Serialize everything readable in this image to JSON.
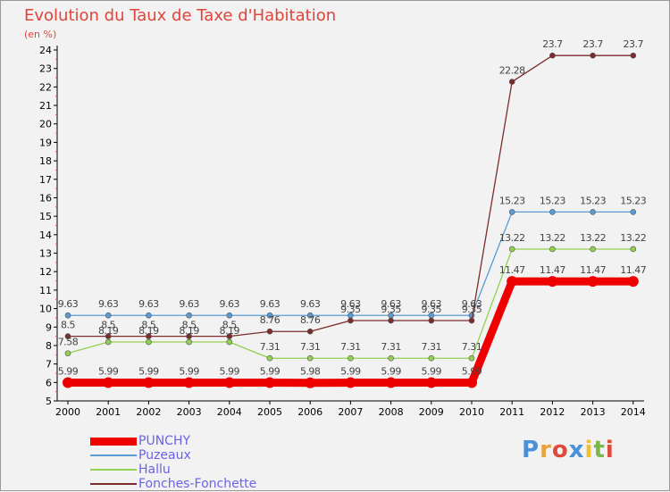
{
  "chart_data": {
    "type": "line",
    "title": "Evolution du Taux de Taxe d'Habitation",
    "subtitle": "(en %)",
    "xlabel": "",
    "ylabel": "",
    "ylim": [
      5,
      24
    ],
    "yticks": [
      "5",
      "6",
      "7",
      "8",
      "9",
      "10",
      "11",
      "12",
      "13",
      "14",
      "15",
      "16",
      "17",
      "18",
      "19",
      "20",
      "21",
      "22",
      "23",
      "24"
    ],
    "x": [
      "2000",
      "2001",
      "2002",
      "2003",
      "2004",
      "2005",
      "2006",
      "2007",
      "2008",
      "2009",
      "2010",
      "2011",
      "2012",
      "2013",
      "2014"
    ],
    "grid": false,
    "legend_position": "bottom-left",
    "series": [
      {
        "name": "PUNCHY",
        "color": "#ee0000",
        "values": [
          5.99,
          5.99,
          5.99,
          5.99,
          5.99,
          5.99,
          5.98,
          5.99,
          5.99,
          5.99,
          5.99,
          11.47,
          11.47,
          11.47,
          11.47
        ],
        "labels": [
          "5.99",
          "5.99",
          "5.99",
          "5.99",
          "5.99",
          "5.99",
          "5.98",
          "5.99",
          "5.99",
          "5.99",
          "5.99",
          "11.47",
          "11.47",
          "11.47",
          "11.47"
        ]
      },
      {
        "name": "Puzeaux",
        "color": "#5b9bd5",
        "values": [
          9.63,
          9.63,
          9.63,
          9.63,
          9.63,
          9.63,
          9.63,
          9.63,
          9.63,
          9.63,
          9.63,
          15.23,
          15.23,
          15.23,
          15.23
        ],
        "labels": [
          "9.63",
          "9.63",
          "9.63",
          "9.63",
          "9.63",
          "9.63",
          "9.63",
          "9.63",
          "9.63",
          "9.63",
          "9.63",
          "15.23",
          "15.23",
          "15.23",
          "15.23"
        ]
      },
      {
        "name": "Hallu",
        "color": "#92d050",
        "values": [
          7.58,
          8.19,
          8.19,
          8.19,
          8.19,
          7.31,
          7.31,
          7.31,
          7.31,
          7.31,
          7.31,
          13.22,
          13.22,
          13.22,
          13.22
        ],
        "labels": [
          "7.58",
          "8.19",
          "8.19",
          "8.19",
          "8.19",
          "7.31",
          "7.31",
          "7.31",
          "7.31",
          "7.31",
          "7.31",
          "13.22",
          "13.22",
          "13.22",
          "13.22"
        ]
      },
      {
        "name": "Fonches-Fonchette",
        "color": "#7b2c2c",
        "values": [
          8.5,
          8.5,
          8.5,
          8.5,
          8.5,
          8.76,
          8.76,
          9.35,
          9.35,
          9.35,
          9.35,
          22.28,
          23.7,
          23.7,
          23.7
        ],
        "labels": [
          "8.5",
          "8.5",
          "8.5",
          "8.5",
          "8.5",
          "8.76",
          "8.76",
          "9.35",
          "9.35",
          "9.35",
          "9.35",
          "22.28",
          "23.7",
          "23.7",
          "23.7"
        ]
      }
    ]
  },
  "logo": {
    "letters": [
      "P",
      "r",
      "o",
      "x",
      "i",
      "t",
      "i"
    ],
    "colors": [
      "#4a90d9",
      "#e8a33c",
      "#e04a3a",
      "#4a90d9",
      "#f0c030",
      "#7ab648",
      "#e04a3a"
    ]
  }
}
